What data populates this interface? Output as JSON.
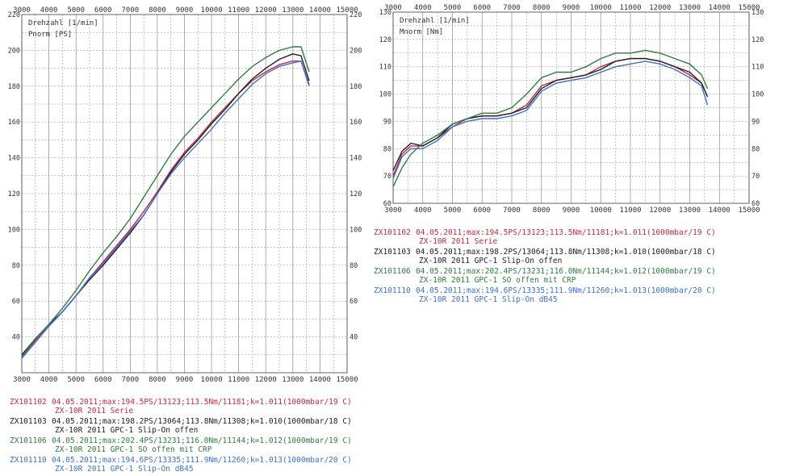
{
  "colors": {
    "serie": "#c8283a",
    "slipon_offen": "#202020",
    "so_offen_crp": "#2e7d3e",
    "slipon_db45": "#3a6fd8",
    "grid": "#8a8a8a",
    "text": "#333333"
  },
  "legend": [
    {
      "id": "ZX101102",
      "line1": "04.05.2011;max:194.5PS/13123;113.5Nm/11181;k=1.011(1000mbar/19 C)",
      "line2": "ZX-10R 2011 Serie",
      "color": "#c8283a"
    },
    {
      "id": "ZX101103",
      "line1": "04.05.2011;max:198.2PS/13064;113.8Nm/11308;k=1.010(1000mbar/18 C)",
      "line2": "ZX-10R 2011 GPC-1 Slip-On offen",
      "color": "#202020"
    },
    {
      "id": "ZX101106",
      "line1": "04.05.2011;max:202.4PS/13231;116.0Nm/11144;k=1.012(1000mbar/19 C)",
      "line2": "ZX-10R 2011 GPC-1 SO offen mit CRP",
      "color": "#2e7d3e"
    },
    {
      "id": "ZX101110",
      "line1": "04.05.2011;max:194.6PS/13335;111.9Nm/11260;k=1.013(1000mbar/20 C)",
      "line2": "ZX-10R 2011 GPC-1 Slip-On dB45",
      "color": "#3a6fd8"
    }
  ],
  "chart_data": [
    {
      "type": "line",
      "xlabel": "Drehzahl [1/min]",
      "ylabel": "Pnorm [PS]",
      "xlim": [
        3000,
        15000
      ],
      "ylim": [
        20,
        220
      ],
      "grid": true,
      "x_ticks": [
        3000,
        4000,
        5000,
        6000,
        7000,
        8000,
        9000,
        10000,
        11000,
        12000,
        13000,
        14000,
        15000
      ],
      "y_ticks": [
        40,
        60,
        80,
        100,
        120,
        140,
        160,
        180,
        200,
        220
      ],
      "series": [
        {
          "key": "serie",
          "color": "#c8283a",
          "x": [
            3000,
            3500,
            4000,
            4500,
            5000,
            5500,
            6000,
            6500,
            7000,
            7500,
            8000,
            8500,
            9000,
            9500,
            10000,
            10500,
            11000,
            11500,
            12000,
            12500,
            13000,
            13300,
            13600
          ],
          "y": [
            29,
            38,
            46,
            54,
            63,
            73,
            82,
            91,
            100,
            110,
            121,
            133,
            143,
            151,
            160,
            168,
            176,
            183,
            188,
            192,
            194,
            194,
            181
          ]
        },
        {
          "key": "slipon_offen",
          "color": "#202020",
          "x": [
            3000,
            3500,
            4000,
            4500,
            5000,
            5500,
            6000,
            6500,
            7000,
            7500,
            8000,
            8500,
            9000,
            9500,
            10000,
            10500,
            11000,
            11500,
            12000,
            12500,
            13000,
            13300,
            13600
          ],
          "y": [
            30,
            39,
            47,
            54,
            63,
            72,
            80,
            89,
            98,
            108,
            120,
            132,
            142,
            150,
            159,
            167,
            176,
            184,
            190,
            195,
            198,
            197,
            183
          ]
        },
        {
          "key": "so_offen_crp",
          "color": "#2e7d3e",
          "x": [
            3000,
            3500,
            4000,
            4500,
            5000,
            5500,
            6000,
            6500,
            7000,
            7500,
            8000,
            8500,
            9000,
            9500,
            10000,
            10500,
            11000,
            11500,
            12000,
            12500,
            13000,
            13300,
            13600
          ],
          "y": [
            29,
            39,
            47,
            56,
            66,
            77,
            87,
            96,
            106,
            118,
            130,
            142,
            152,
            160,
            168,
            176,
            184,
            191,
            196,
            200,
            202,
            202,
            188
          ]
        },
        {
          "key": "slipon_db45",
          "color": "#3a6fd8",
          "x": [
            3000,
            3500,
            4000,
            4500,
            5000,
            5500,
            6000,
            6500,
            7000,
            7500,
            8000,
            8500,
            9000,
            9500,
            10000,
            10500,
            11000,
            11500,
            12000,
            12500,
            13000,
            13300,
            13600
          ],
          "y": [
            28,
            37,
            46,
            54,
            63,
            73,
            81,
            90,
            99,
            108,
            120,
            131,
            140,
            148,
            156,
            165,
            173,
            181,
            187,
            191,
            193,
            194,
            180
          ]
        }
      ]
    },
    {
      "type": "line",
      "xlabel": "Drehzahl [1/min]",
      "ylabel": "Mnorm [Nm]",
      "xlim": [
        3000,
        15000
      ],
      "ylim": [
        60,
        130
      ],
      "grid": true,
      "x_ticks": [
        3000,
        4000,
        5000,
        6000,
        7000,
        8000,
        9000,
        10000,
        11000,
        12000,
        13000,
        14000,
        15000
      ],
      "y_ticks": [
        60,
        70,
        80,
        90,
        100,
        110,
        120,
        130
      ],
      "series": [
        {
          "key": "serie",
          "color": "#c8283a",
          "x": [
            3000,
            3300,
            3600,
            4000,
            4500,
            5000,
            5500,
            6000,
            6500,
            7000,
            7500,
            8000,
            8500,
            9000,
            9500,
            10000,
            10500,
            11000,
            11500,
            12000,
            12500,
            13000,
            13400,
            13600
          ],
          "y": [
            70,
            78,
            81,
            81,
            84,
            88,
            91,
            92,
            92,
            93,
            96,
            103,
            105,
            106,
            107,
            110,
            112,
            113,
            113,
            112,
            110,
            107,
            104,
            99
          ]
        },
        {
          "key": "slipon_offen",
          "color": "#202020",
          "x": [
            3000,
            3300,
            3600,
            4000,
            4500,
            5000,
            5500,
            6000,
            6500,
            7000,
            7500,
            8000,
            8500,
            9000,
            9500,
            10000,
            10500,
            11000,
            11500,
            12000,
            12500,
            13000,
            13400,
            13600
          ],
          "y": [
            72,
            79,
            82,
            81,
            84,
            89,
            91,
            92,
            92,
            93,
            95,
            102,
            105,
            106,
            107,
            109,
            112,
            113,
            113,
            112,
            110,
            108,
            104,
            99
          ]
        },
        {
          "key": "so_offen_crp",
          "color": "#2e7d3e",
          "x": [
            3000,
            3300,
            3600,
            4000,
            4500,
            5000,
            5500,
            6000,
            6500,
            7000,
            7500,
            8000,
            8500,
            9000,
            9500,
            10000,
            10500,
            11000,
            11500,
            12000,
            12500,
            13000,
            13400,
            13600
          ],
          "y": [
            66,
            73,
            78,
            82,
            85,
            89,
            91,
            93,
            93,
            95,
            100,
            106,
            108,
            108,
            110,
            113,
            115,
            115,
            116,
            115,
            113,
            111,
            107,
            102
          ]
        },
        {
          "key": "slipon_db45",
          "color": "#3a6fd8",
          "x": [
            3000,
            3300,
            3600,
            4000,
            4500,
            5000,
            5500,
            6000,
            6500,
            7000,
            7500,
            8000,
            8500,
            9000,
            9500,
            10000,
            10500,
            11000,
            11500,
            12000,
            12500,
            13000,
            13400,
            13600
          ],
          "y": [
            69,
            77,
            80,
            80,
            83,
            88,
            90,
            91,
            91,
            92,
            94,
            101,
            104,
            105,
            106,
            108,
            110,
            111,
            112,
            111,
            109,
            106,
            103,
            96
          ]
        }
      ]
    }
  ]
}
